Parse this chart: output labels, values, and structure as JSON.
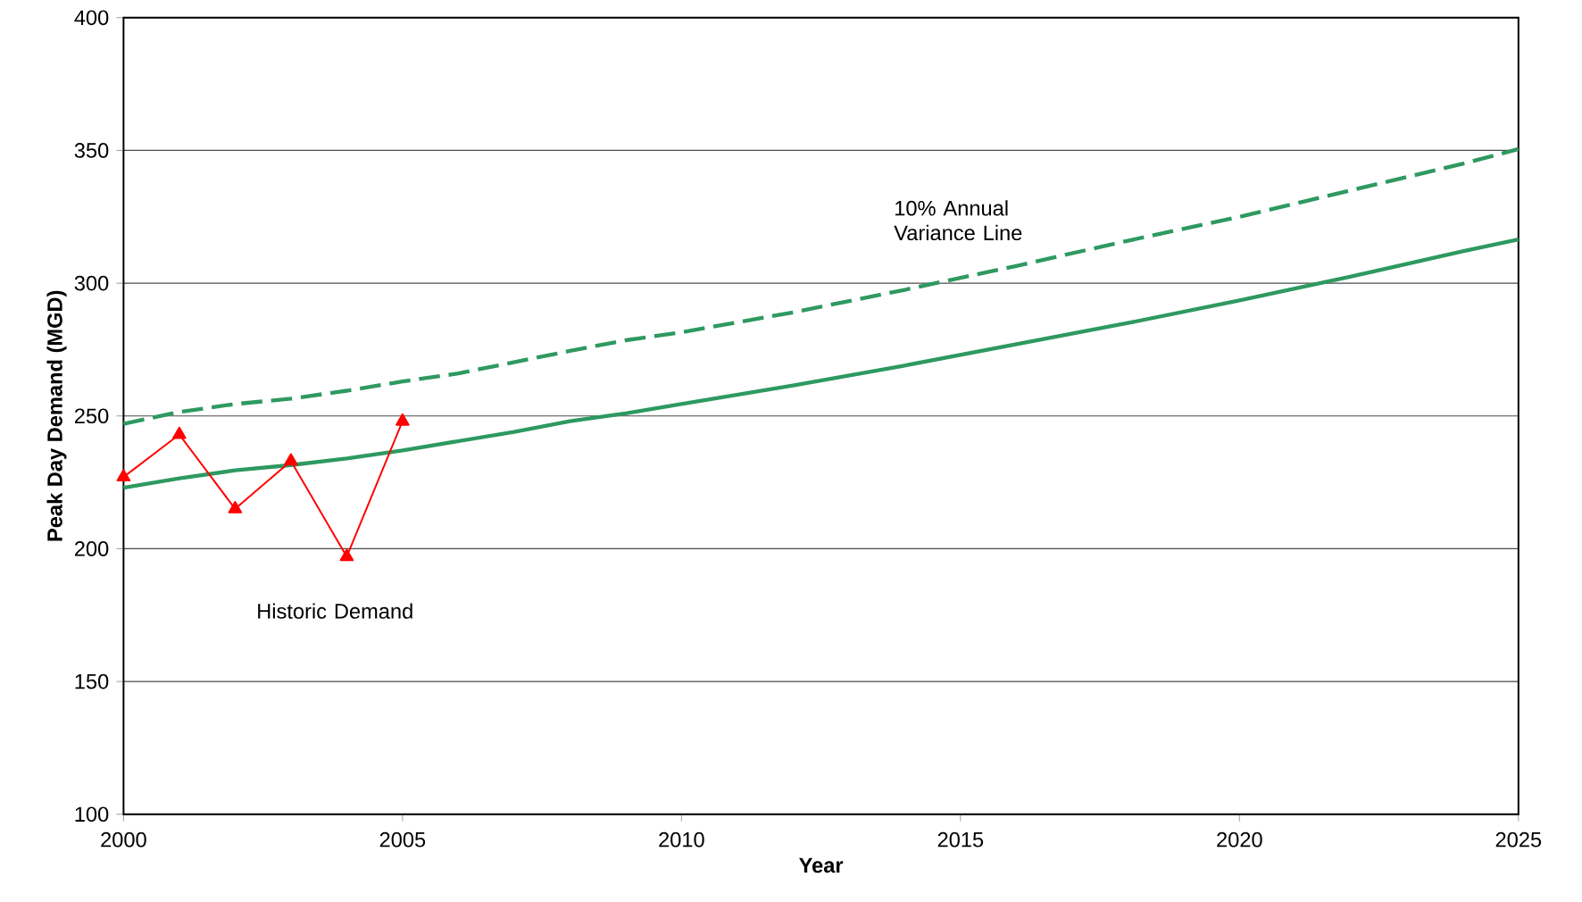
{
  "chart_data": {
    "type": "line",
    "xlabel": "Year",
    "ylabel": "Peak Day Demand (MGD)",
    "xlim": [
      2000,
      2025
    ],
    "xticks": [
      2000,
      2005,
      2010,
      2015,
      2020,
      2025
    ],
    "ylim": [
      100,
      400
    ],
    "yticks": [
      100,
      150,
      200,
      250,
      300,
      350,
      400
    ],
    "grid": "y",
    "series": [
      {
        "color": "#2e9960",
        "line_style": "dashed",
        "marker": "none",
        "x": [
          2000,
          2001,
          2002,
          2003,
          2004,
          2005,
          2006,
          2008,
          2009,
          2010,
          2012,
          2014,
          2016,
          2018,
          2020,
          2022,
          2024,
          2025
        ],
        "values": [
          247,
          251.5,
          254.5,
          256.5,
          259.5,
          263,
          266,
          274.5,
          278.5,
          281.5,
          289,
          297.5,
          306.5,
          316,
          325,
          335,
          345,
          350.5
        ]
      },
      {
        "color": "#2e9960",
        "line_style": "solid",
        "marker": "none",
        "x": [
          2000,
          2001,
          2002,
          2003,
          2004,
          2005,
          2006,
          2007,
          2008,
          2009,
          2010,
          2012,
          2014,
          2016,
          2018,
          2020,
          2022,
          2024,
          2025
        ],
        "values": [
          223,
          226.5,
          229.5,
          231.5,
          234,
          237,
          240.5,
          244,
          248,
          251,
          254.5,
          261.5,
          269,
          277,
          285,
          293.5,
          302.5,
          312,
          316.5
        ]
      },
      {
        "color": "#ff0000",
        "line_style": "solid",
        "marker": "triangle",
        "x": [
          2000,
          2001,
          2002,
          2003,
          2004,
          2005
        ],
        "values": [
          227,
          243,
          215,
          233,
          197,
          248
        ]
      }
    ],
    "annotations": [
      "10% Annual Variance Line",
      "Historic Demand"
    ]
  }
}
